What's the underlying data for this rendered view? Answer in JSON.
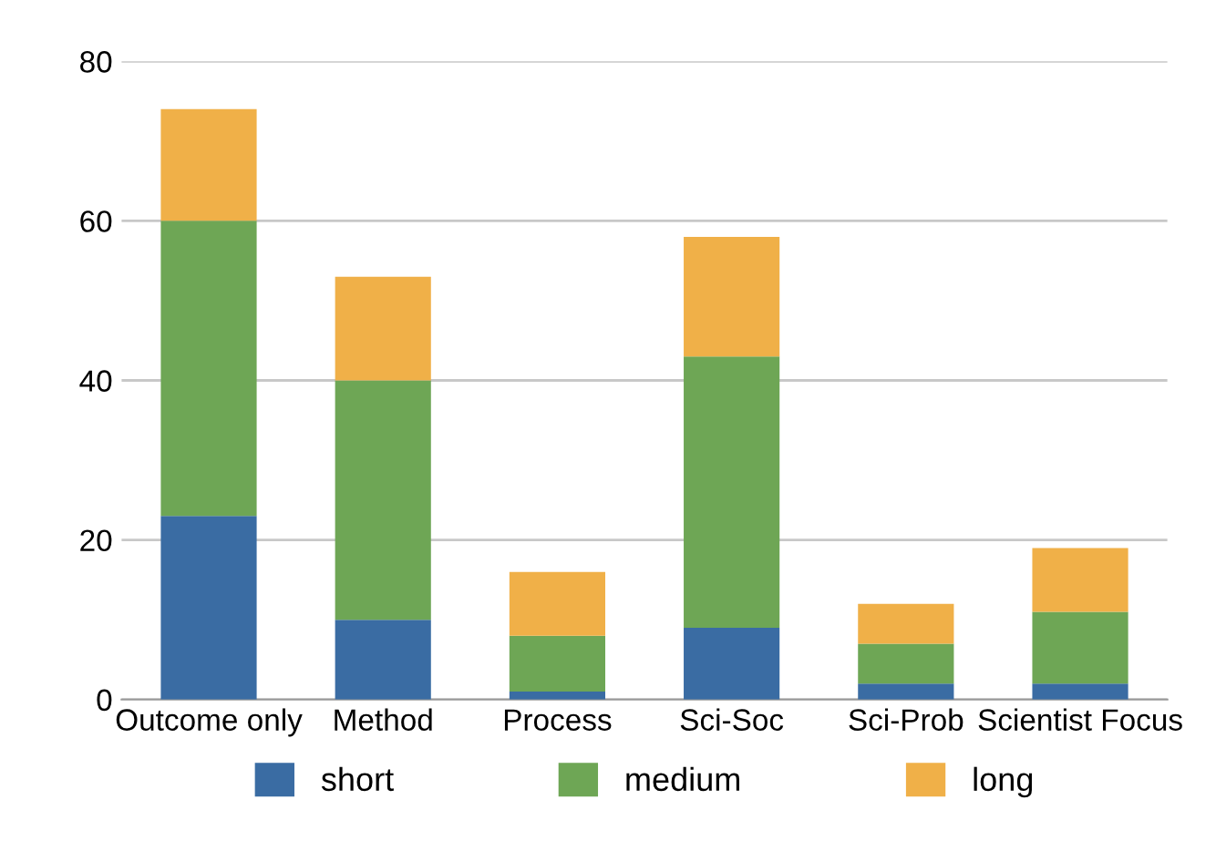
{
  "chart_data": {
    "type": "bar",
    "stacked": true,
    "categories": [
      "Outcome only",
      "Method",
      "Process",
      "Sci-Soc",
      "Sci-Prob",
      "Scientist Focus"
    ],
    "series": [
      {
        "name": "short",
        "color": "#3a6ca3",
        "values": [
          23,
          10,
          1,
          9,
          2,
          2
        ]
      },
      {
        "name": "medium",
        "color": "#6ea655",
        "values": [
          37,
          30,
          7,
          34,
          5,
          9
        ]
      },
      {
        "name": "long",
        "color": "#f0b048",
        "values": [
          14,
          13,
          8,
          15,
          5,
          8
        ]
      }
    ],
    "ylim": [
      0,
      80
    ],
    "yticks": [
      0,
      20,
      40,
      60,
      80
    ],
    "grid": "y",
    "legend": "bottom"
  }
}
